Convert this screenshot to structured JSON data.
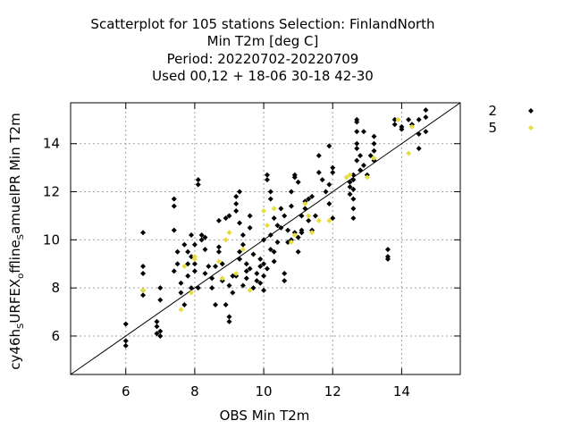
{
  "chart_data": {
    "type": "scatter",
    "title_lines": [
      "Scatterplot for  105 stations Selection: FinlandNorth",
      "Min T2m [deg C]",
      "Period: 20220702-20220709",
      "Used  00,12  + 18-06 30-18 42-30"
    ],
    "xlabel": "OBS Min T2m",
    "ylabel_base": "cy46h",
    "ylabel_sub1": "S",
    "ylabel_mid": "URFEX",
    "ylabel_sub2": "o",
    "ylabel_end": "ffline",
    "ylabel_sub3": "S",
    "ylabel_tail": "amuelPR Min T2m",
    "xlim": [
      4.4,
      15.7
    ],
    "ylim": [
      4.4,
      15.7
    ],
    "xticks": [
      6,
      8,
      10,
      12,
      14
    ],
    "yticks": [
      6,
      8,
      10,
      12,
      14
    ],
    "grid": true,
    "diagonal": true,
    "legend_position": "outside-right",
    "series": [
      {
        "name": "2",
        "color": "#000000",
        "marker": "diamond",
        "points": [
          [
            6.0,
            6.5
          ],
          [
            6.0,
            5.8
          ],
          [
            6.0,
            5.6
          ],
          [
            6.5,
            10.3
          ],
          [
            6.5,
            8.9
          ],
          [
            6.5,
            8.6
          ],
          [
            6.5,
            7.9
          ],
          [
            6.5,
            7.7
          ],
          [
            6.9,
            6.6
          ],
          [
            6.9,
            6.4
          ],
          [
            6.9,
            6.1
          ],
          [
            7.0,
            6.0
          ],
          [
            7.0,
            6.2
          ],
          [
            7.0,
            7.5
          ],
          [
            7.0,
            8.0
          ],
          [
            7.4,
            11.7
          ],
          [
            7.4,
            11.4
          ],
          [
            7.4,
            10.4
          ],
          [
            7.5,
            9.5
          ],
          [
            7.5,
            9.0
          ],
          [
            7.4,
            8.7
          ],
          [
            7.6,
            8.2
          ],
          [
            7.6,
            7.8
          ],
          [
            7.7,
            7.3
          ],
          [
            7.7,
            9.8
          ],
          [
            7.8,
            9.5
          ],
          [
            7.8,
            9.0
          ],
          [
            7.8,
            8.5
          ],
          [
            7.9,
            8.0
          ],
          [
            7.9,
            10.2
          ],
          [
            8.0,
            9.0
          ],
          [
            8.0,
            8.7
          ],
          [
            8.1,
            8.0
          ],
          [
            8.1,
            12.5
          ],
          [
            8.1,
            12.3
          ],
          [
            8.2,
            10.2
          ],
          [
            8.2,
            10.0
          ],
          [
            8.3,
            9.6
          ],
          [
            8.3,
            10.1
          ],
          [
            8.4,
            8.9
          ],
          [
            8.5,
            8.4
          ],
          [
            8.5,
            8.0
          ],
          [
            8.6,
            7.3
          ],
          [
            8.6,
            8.9
          ],
          [
            8.7,
            9.5
          ],
          [
            8.7,
            10.8
          ],
          [
            8.8,
            9.0
          ],
          [
            8.8,
            8.3
          ],
          [
            8.9,
            7.3
          ],
          [
            8.9,
            10.9
          ],
          [
            9.0,
            6.8
          ],
          [
            9.0,
            6.6
          ],
          [
            9.0,
            8.1
          ],
          [
            9.0,
            11.0
          ],
          [
            9.1,
            8.5
          ],
          [
            9.1,
            7.8
          ],
          [
            9.2,
            11.8
          ],
          [
            9.2,
            11.5
          ],
          [
            9.2,
            11.2
          ],
          [
            9.3,
            12.0
          ],
          [
            9.3,
            9.5
          ],
          [
            9.3,
            9.2
          ],
          [
            9.4,
            10.2
          ],
          [
            9.4,
            9.8
          ],
          [
            9.5,
            8.7
          ],
          [
            9.5,
            8.4
          ],
          [
            9.5,
            9.0
          ],
          [
            9.6,
            10.5
          ],
          [
            9.6,
            11.0
          ],
          [
            9.7,
            8.0
          ],
          [
            9.7,
            9.4
          ],
          [
            9.8,
            8.3
          ],
          [
            9.8,
            8.6
          ],
          [
            9.9,
            8.9
          ],
          [
            9.9,
            8.2
          ],
          [
            9.9,
            9.2
          ],
          [
            10.0,
            9.0
          ],
          [
            10.0,
            8.5
          ],
          [
            10.0,
            7.9
          ],
          [
            10.0,
            10.0
          ],
          [
            10.1,
            8.8
          ],
          [
            10.1,
            12.7
          ],
          [
            10.1,
            12.5
          ],
          [
            10.2,
            11.7
          ],
          [
            10.2,
            12.0
          ],
          [
            10.2,
            10.2
          ],
          [
            10.3,
            9.1
          ],
          [
            10.3,
            9.5
          ],
          [
            10.4,
            10.6
          ],
          [
            10.5,
            11.3
          ],
          [
            10.5,
            10.5
          ],
          [
            10.6,
            11.0
          ],
          [
            10.6,
            8.3
          ],
          [
            10.6,
            8.6
          ],
          [
            10.7,
            9.9
          ],
          [
            10.7,
            10.4
          ],
          [
            10.8,
            10.0
          ],
          [
            10.8,
            11.4
          ],
          [
            10.9,
            12.7
          ],
          [
            10.9,
            12.6
          ],
          [
            11.0,
            12.4
          ],
          [
            11.0,
            9.5
          ],
          [
            11.0,
            10.1
          ],
          [
            11.1,
            10.4
          ],
          [
            11.1,
            10.3
          ],
          [
            11.2,
            11.6
          ],
          [
            11.2,
            11.3
          ],
          [
            11.3,
            11.7
          ],
          [
            11.3,
            10.8
          ],
          [
            11.4,
            10.4
          ],
          [
            11.5,
            11.0
          ],
          [
            11.6,
            13.5
          ],
          [
            11.6,
            12.8
          ],
          [
            11.7,
            12.5
          ],
          [
            11.8,
            12.0
          ],
          [
            11.9,
            12.3
          ],
          [
            11.9,
            13.9
          ],
          [
            11.9,
            11.5
          ],
          [
            12.0,
            13.0
          ],
          [
            12.0,
            12.8
          ],
          [
            12.0,
            10.9
          ],
          [
            12.5,
            12.4
          ],
          [
            12.5,
            12.2
          ],
          [
            12.5,
            11.9
          ],
          [
            12.6,
            12.7
          ],
          [
            12.6,
            12.5
          ],
          [
            12.6,
            12.1
          ],
          [
            12.6,
            11.7
          ],
          [
            12.6,
            11.3
          ],
          [
            12.6,
            10.9
          ],
          [
            12.7,
            15.0
          ],
          [
            12.7,
            14.9
          ],
          [
            12.7,
            14.5
          ],
          [
            12.7,
            14.0
          ],
          [
            12.7,
            13.8
          ],
          [
            12.7,
            13.3
          ],
          [
            12.8,
            12.9
          ],
          [
            12.8,
            13.5
          ],
          [
            12.9,
            13.1
          ],
          [
            12.9,
            14.5
          ],
          [
            13.0,
            12.7
          ],
          [
            13.1,
            13.5
          ],
          [
            13.2,
            14.3
          ],
          [
            13.2,
            14.0
          ],
          [
            13.2,
            13.3
          ],
          [
            13.2,
            13.7
          ],
          [
            13.6,
            9.6
          ],
          [
            13.6,
            9.3
          ],
          [
            13.6,
            9.2
          ],
          [
            13.8,
            14.8
          ],
          [
            13.8,
            15.0
          ],
          [
            14.0,
            14.7
          ],
          [
            14.0,
            14.6
          ],
          [
            14.2,
            15.0
          ],
          [
            14.3,
            14.8
          ],
          [
            14.5,
            15.0
          ],
          [
            14.5,
            14.4
          ],
          [
            14.5,
            13.8
          ],
          [
            14.7,
            15.4
          ],
          [
            14.7,
            15.1
          ],
          [
            14.7,
            14.5
          ],
          [
            9.2,
            8.5
          ],
          [
            9.4,
            8.1
          ],
          [
            9.6,
            8.8
          ],
          [
            10.2,
            9.6
          ],
          [
            10.4,
            9.9
          ],
          [
            10.9,
            10.3
          ],
          [
            11.1,
            11.0
          ],
          [
            8.3,
            8.6
          ],
          [
            8.7,
            9.7
          ],
          [
            9.3,
            10.7
          ],
          [
            10.3,
            10.9
          ],
          [
            10.8,
            12.0
          ],
          [
            11.4,
            11.8
          ],
          [
            7.9,
            9.3
          ],
          [
            8.0,
            9.8
          ]
        ]
      },
      {
        "name": "5",
        "color": "#e8dc3c",
        "marker": "diamond",
        "points": [
          [
            6.5,
            7.9
          ],
          [
            7.6,
            7.1
          ],
          [
            7.7,
            8.9
          ],
          [
            7.9,
            7.8
          ],
          [
            8.0,
            9.3
          ],
          [
            8.0,
            9.2
          ],
          [
            8.7,
            9.1
          ],
          [
            8.8,
            8.4
          ],
          [
            8.9,
            10.0
          ],
          [
            9.0,
            10.3
          ],
          [
            9.2,
            8.6
          ],
          [
            9.4,
            9.6
          ],
          [
            9.6,
            7.9
          ],
          [
            10.0,
            11.2
          ],
          [
            10.1,
            10.6
          ],
          [
            10.3,
            11.3
          ],
          [
            10.8,
            9.9
          ],
          [
            10.9,
            10.2
          ],
          [
            11.2,
            11.5
          ],
          [
            11.3,
            11.0
          ],
          [
            11.4,
            10.3
          ],
          [
            11.6,
            10.8
          ],
          [
            11.9,
            10.8
          ],
          [
            12.4,
            12.6
          ],
          [
            12.5,
            12.7
          ],
          [
            13.0,
            12.6
          ],
          [
            13.2,
            13.4
          ],
          [
            13.9,
            15.0
          ],
          [
            14.2,
            13.6
          ],
          [
            14.3,
            14.7
          ]
        ]
      }
    ]
  }
}
